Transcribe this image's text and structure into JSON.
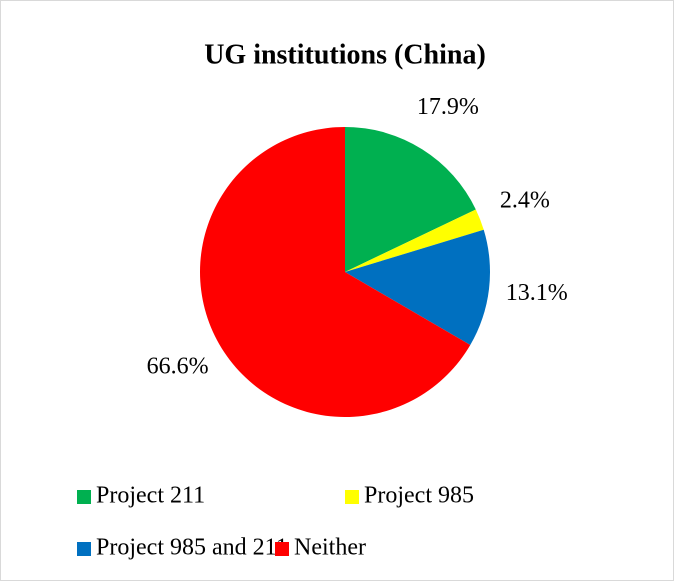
{
  "chart_data": {
    "type": "pie",
    "title": "UG institutions (China)",
    "categories": [
      "Project 211",
      "Project 985",
      "Project 985 and 211",
      "Neither"
    ],
    "values": [
      17.9,
      2.4,
      13.1,
      66.6
    ],
    "value_labels": [
      "17.9%",
      "2.4%",
      "13.1%",
      "66.6%"
    ],
    "colors": [
      "#00b050",
      "#ffff00",
      "#0070c0",
      "#ff0000"
    ],
    "legend": "bottom"
  }
}
